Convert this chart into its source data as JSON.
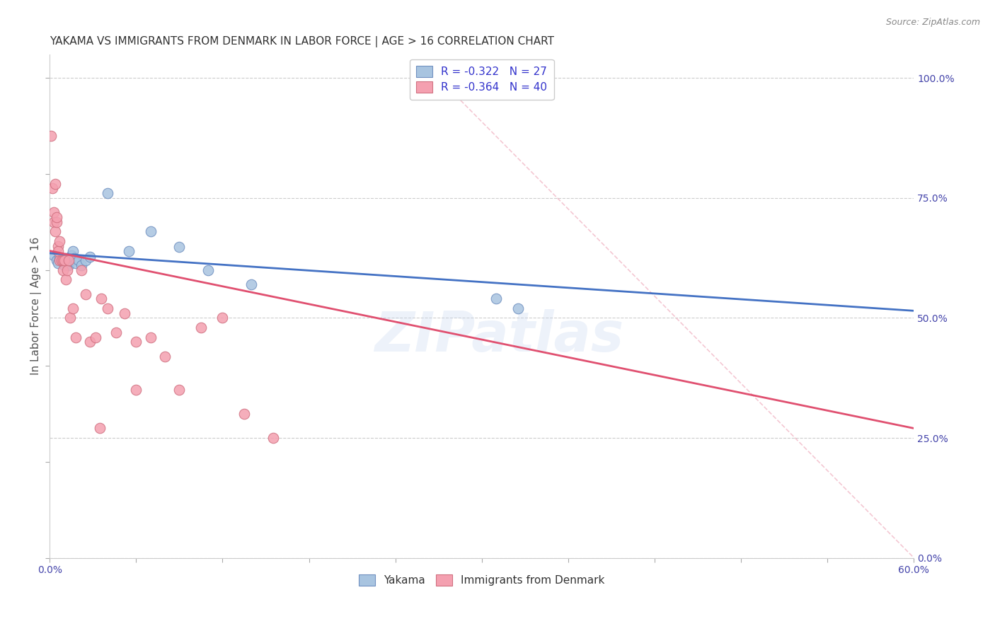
{
  "title": "YAKAMA VS IMMIGRANTS FROM DENMARK IN LABOR FORCE | AGE > 16 CORRELATION CHART",
  "source": "Source: ZipAtlas.com",
  "ylabel": "In Labor Force | Age > 16",
  "xlabel_ticks_show": [
    "0.0%",
    "",
    "",
    "",
    "",
    "",
    "",
    "",
    "",
    "",
    "60.0%"
  ],
  "xlabel_vals": [
    0.0,
    0.06,
    0.12,
    0.18,
    0.24,
    0.3,
    0.36,
    0.42,
    0.48,
    0.54,
    0.6
  ],
  "ylabel_ticks_right": [
    "0.0%",
    "25.0%",
    "50.0%",
    "75.0%",
    "100.0%"
  ],
  "ylabel_vals_right": [
    0.0,
    0.25,
    0.5,
    0.75,
    1.0
  ],
  "xlim": [
    0.0,
    0.6
  ],
  "ylim": [
    0.0,
    1.05
  ],
  "blue_R": -0.322,
  "blue_N": 27,
  "pink_R": -0.364,
  "pink_N": 40,
  "blue_color": "#a8c4e0",
  "pink_color": "#f4a0b0",
  "blue_line_color": "#4472c4",
  "pink_line_color": "#e05070",
  "grid_color": "#cccccc",
  "background_color": "#ffffff",
  "blue_scatter_x": [
    0.003,
    0.005,
    0.006,
    0.007,
    0.008,
    0.009,
    0.01,
    0.011,
    0.012,
    0.013,
    0.014,
    0.015,
    0.016,
    0.017,
    0.018,
    0.02,
    0.022,
    0.025,
    0.028,
    0.04,
    0.055,
    0.07,
    0.09,
    0.11,
    0.14,
    0.31,
    0.325
  ],
  "blue_scatter_y": [
    0.63,
    0.62,
    0.615,
    0.625,
    0.62,
    0.618,
    0.61,
    0.625,
    0.612,
    0.61,
    0.618,
    0.63,
    0.64,
    0.625,
    0.615,
    0.62,
    0.61,
    0.62,
    0.628,
    0.76,
    0.64,
    0.68,
    0.648,
    0.6,
    0.57,
    0.54,
    0.52
  ],
  "pink_scatter_x": [
    0.001,
    0.002,
    0.003,
    0.003,
    0.004,
    0.004,
    0.005,
    0.005,
    0.006,
    0.006,
    0.007,
    0.007,
    0.008,
    0.009,
    0.009,
    0.01,
    0.011,
    0.012,
    0.013,
    0.014,
    0.016,
    0.018,
    0.022,
    0.025,
    0.028,
    0.032,
    0.036,
    0.04,
    0.046,
    0.052,
    0.06,
    0.07,
    0.08,
    0.09,
    0.105,
    0.12,
    0.135,
    0.155,
    0.035,
    0.06
  ],
  "pink_scatter_y": [
    0.88,
    0.77,
    0.7,
    0.72,
    0.68,
    0.78,
    0.7,
    0.71,
    0.65,
    0.64,
    0.62,
    0.66,
    0.62,
    0.62,
    0.6,
    0.62,
    0.58,
    0.6,
    0.62,
    0.5,
    0.52,
    0.46,
    0.6,
    0.55,
    0.45,
    0.46,
    0.54,
    0.52,
    0.47,
    0.51,
    0.45,
    0.46,
    0.42,
    0.35,
    0.48,
    0.5,
    0.3,
    0.25,
    0.27,
    0.35
  ],
  "blue_trend_x": [
    0.0,
    0.6
  ],
  "blue_trend_y": [
    0.635,
    0.515
  ],
  "pink_trend_x": [
    0.0,
    0.6
  ],
  "pink_trend_y": [
    0.64,
    0.27
  ],
  "diag_line_x": [
    0.27,
    0.6
  ],
  "diag_line_y": [
    1.0,
    0.0
  ],
  "watermark": "ZIPatlas",
  "title_fontsize": 11,
  "axis_label_fontsize": 11,
  "tick_fontsize": 10
}
